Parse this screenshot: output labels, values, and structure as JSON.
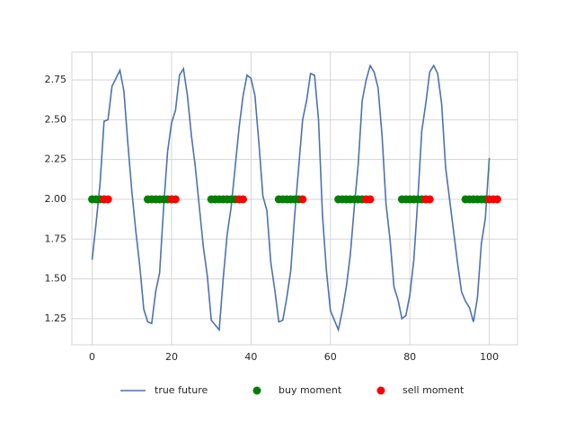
{
  "chart_data": {
    "type": "line",
    "xlim": [
      -5.1,
      107.1
    ],
    "ylim": [
      1.086,
      2.925
    ],
    "xticks": [
      0,
      20,
      40,
      60,
      80,
      100
    ],
    "yticks": [
      1.25,
      {
        "value": 1.5,
        "label": "1.50"
      },
      1.75,
      {
        "value": 2,
        "label": "2.00"
      },
      2.25,
      {
        "value": 2.5,
        "label": "2.50"
      },
      2.75
    ],
    "grid": true,
    "legend": "bottom",
    "series": [
      {
        "name": "true future",
        "type": "line",
        "color": "#4c72b0",
        "x": [
          0,
          1,
          2,
          3,
          4,
          5,
          6,
          7,
          8,
          9,
          10,
          11,
          12,
          13,
          14,
          15,
          16,
          17,
          18,
          19,
          20,
          21,
          22,
          23,
          24,
          25,
          26,
          27,
          28,
          29,
          30,
          31,
          32,
          33,
          34,
          35,
          36,
          37,
          38,
          39,
          40,
          41,
          42,
          43,
          44,
          45,
          46,
          47,
          48,
          49,
          50,
          51,
          52,
          53,
          54,
          55,
          56,
          57,
          58,
          59,
          60,
          61,
          62,
          63,
          64,
          65,
          66,
          67,
          68,
          69,
          70,
          71,
          72,
          73,
          74,
          75,
          76,
          77,
          78,
          79,
          80,
          81,
          82,
          83,
          84,
          85,
          86,
          87,
          88,
          89,
          90,
          91,
          92,
          93,
          94,
          95,
          96,
          97,
          98,
          99,
          100
        ],
        "values": [
          1.62,
          1.85,
          2.1,
          2.49,
          2.5,
          2.71,
          2.76,
          2.81,
          2.68,
          2.35,
          2.05,
          1.8,
          1.58,
          1.31,
          1.23,
          1.22,
          1.42,
          1.54,
          1.95,
          2.3,
          2.48,
          2.56,
          2.78,
          2.82,
          2.65,
          2.4,
          2.2,
          1.95,
          1.7,
          1.52,
          1.24,
          1.21,
          1.18,
          1.5,
          1.78,
          1.95,
          2.2,
          2.45,
          2.65,
          2.78,
          2.76,
          2.65,
          2.35,
          2.02,
          1.93,
          1.6,
          1.43,
          1.23,
          1.24,
          1.38,
          1.55,
          1.9,
          2.2,
          2.5,
          2.62,
          2.79,
          2.78,
          2.5,
          1.9,
          1.55,
          1.3,
          1.24,
          1.18,
          1.3,
          1.45,
          1.65,
          1.95,
          2.22,
          2.62,
          2.75,
          2.84,
          2.8,
          2.7,
          2.4,
          1.97,
          1.75,
          1.45,
          1.37,
          1.25,
          1.27,
          1.4,
          1.62,
          2.0,
          2.43,
          2.6,
          2.8,
          2.84,
          2.79,
          2.6,
          2.2,
          2.0,
          1.8,
          1.6,
          1.42,
          1.36,
          1.32,
          1.23,
          1.38,
          1.72,
          1.88,
          2.26
        ]
      },
      {
        "name": "buy moment",
        "type": "scatter",
        "color": "green",
        "x": [
          0,
          1,
          2,
          3,
          14,
          15,
          16,
          17,
          18,
          19,
          20,
          30,
          31,
          32,
          33,
          34,
          35,
          36,
          47,
          48,
          49,
          50,
          51,
          52,
          62,
          63,
          64,
          65,
          66,
          67,
          68,
          78,
          79,
          80,
          81,
          82,
          83,
          84,
          94,
          95,
          96,
          97,
          98,
          99
        ],
        "values": [
          2,
          2,
          2,
          2,
          2,
          2,
          2,
          2,
          2,
          2,
          2,
          2,
          2,
          2,
          2,
          2,
          2,
          2,
          2,
          2,
          2,
          2,
          2,
          2,
          2,
          2,
          2,
          2,
          2,
          2,
          2,
          2,
          2,
          2,
          2,
          2,
          2,
          2,
          2,
          2,
          2,
          2,
          2,
          2
        ]
      },
      {
        "name": "sell moment",
        "type": "scatter",
        "color": "red",
        "x": [
          3,
          4,
          20,
          21,
          37,
          38,
          53,
          69,
          70,
          84,
          85,
          100,
          101,
          102
        ],
        "values": [
          2,
          2,
          2,
          2,
          2,
          2,
          2,
          2,
          2,
          2,
          2,
          2,
          2,
          2
        ]
      }
    ]
  }
}
